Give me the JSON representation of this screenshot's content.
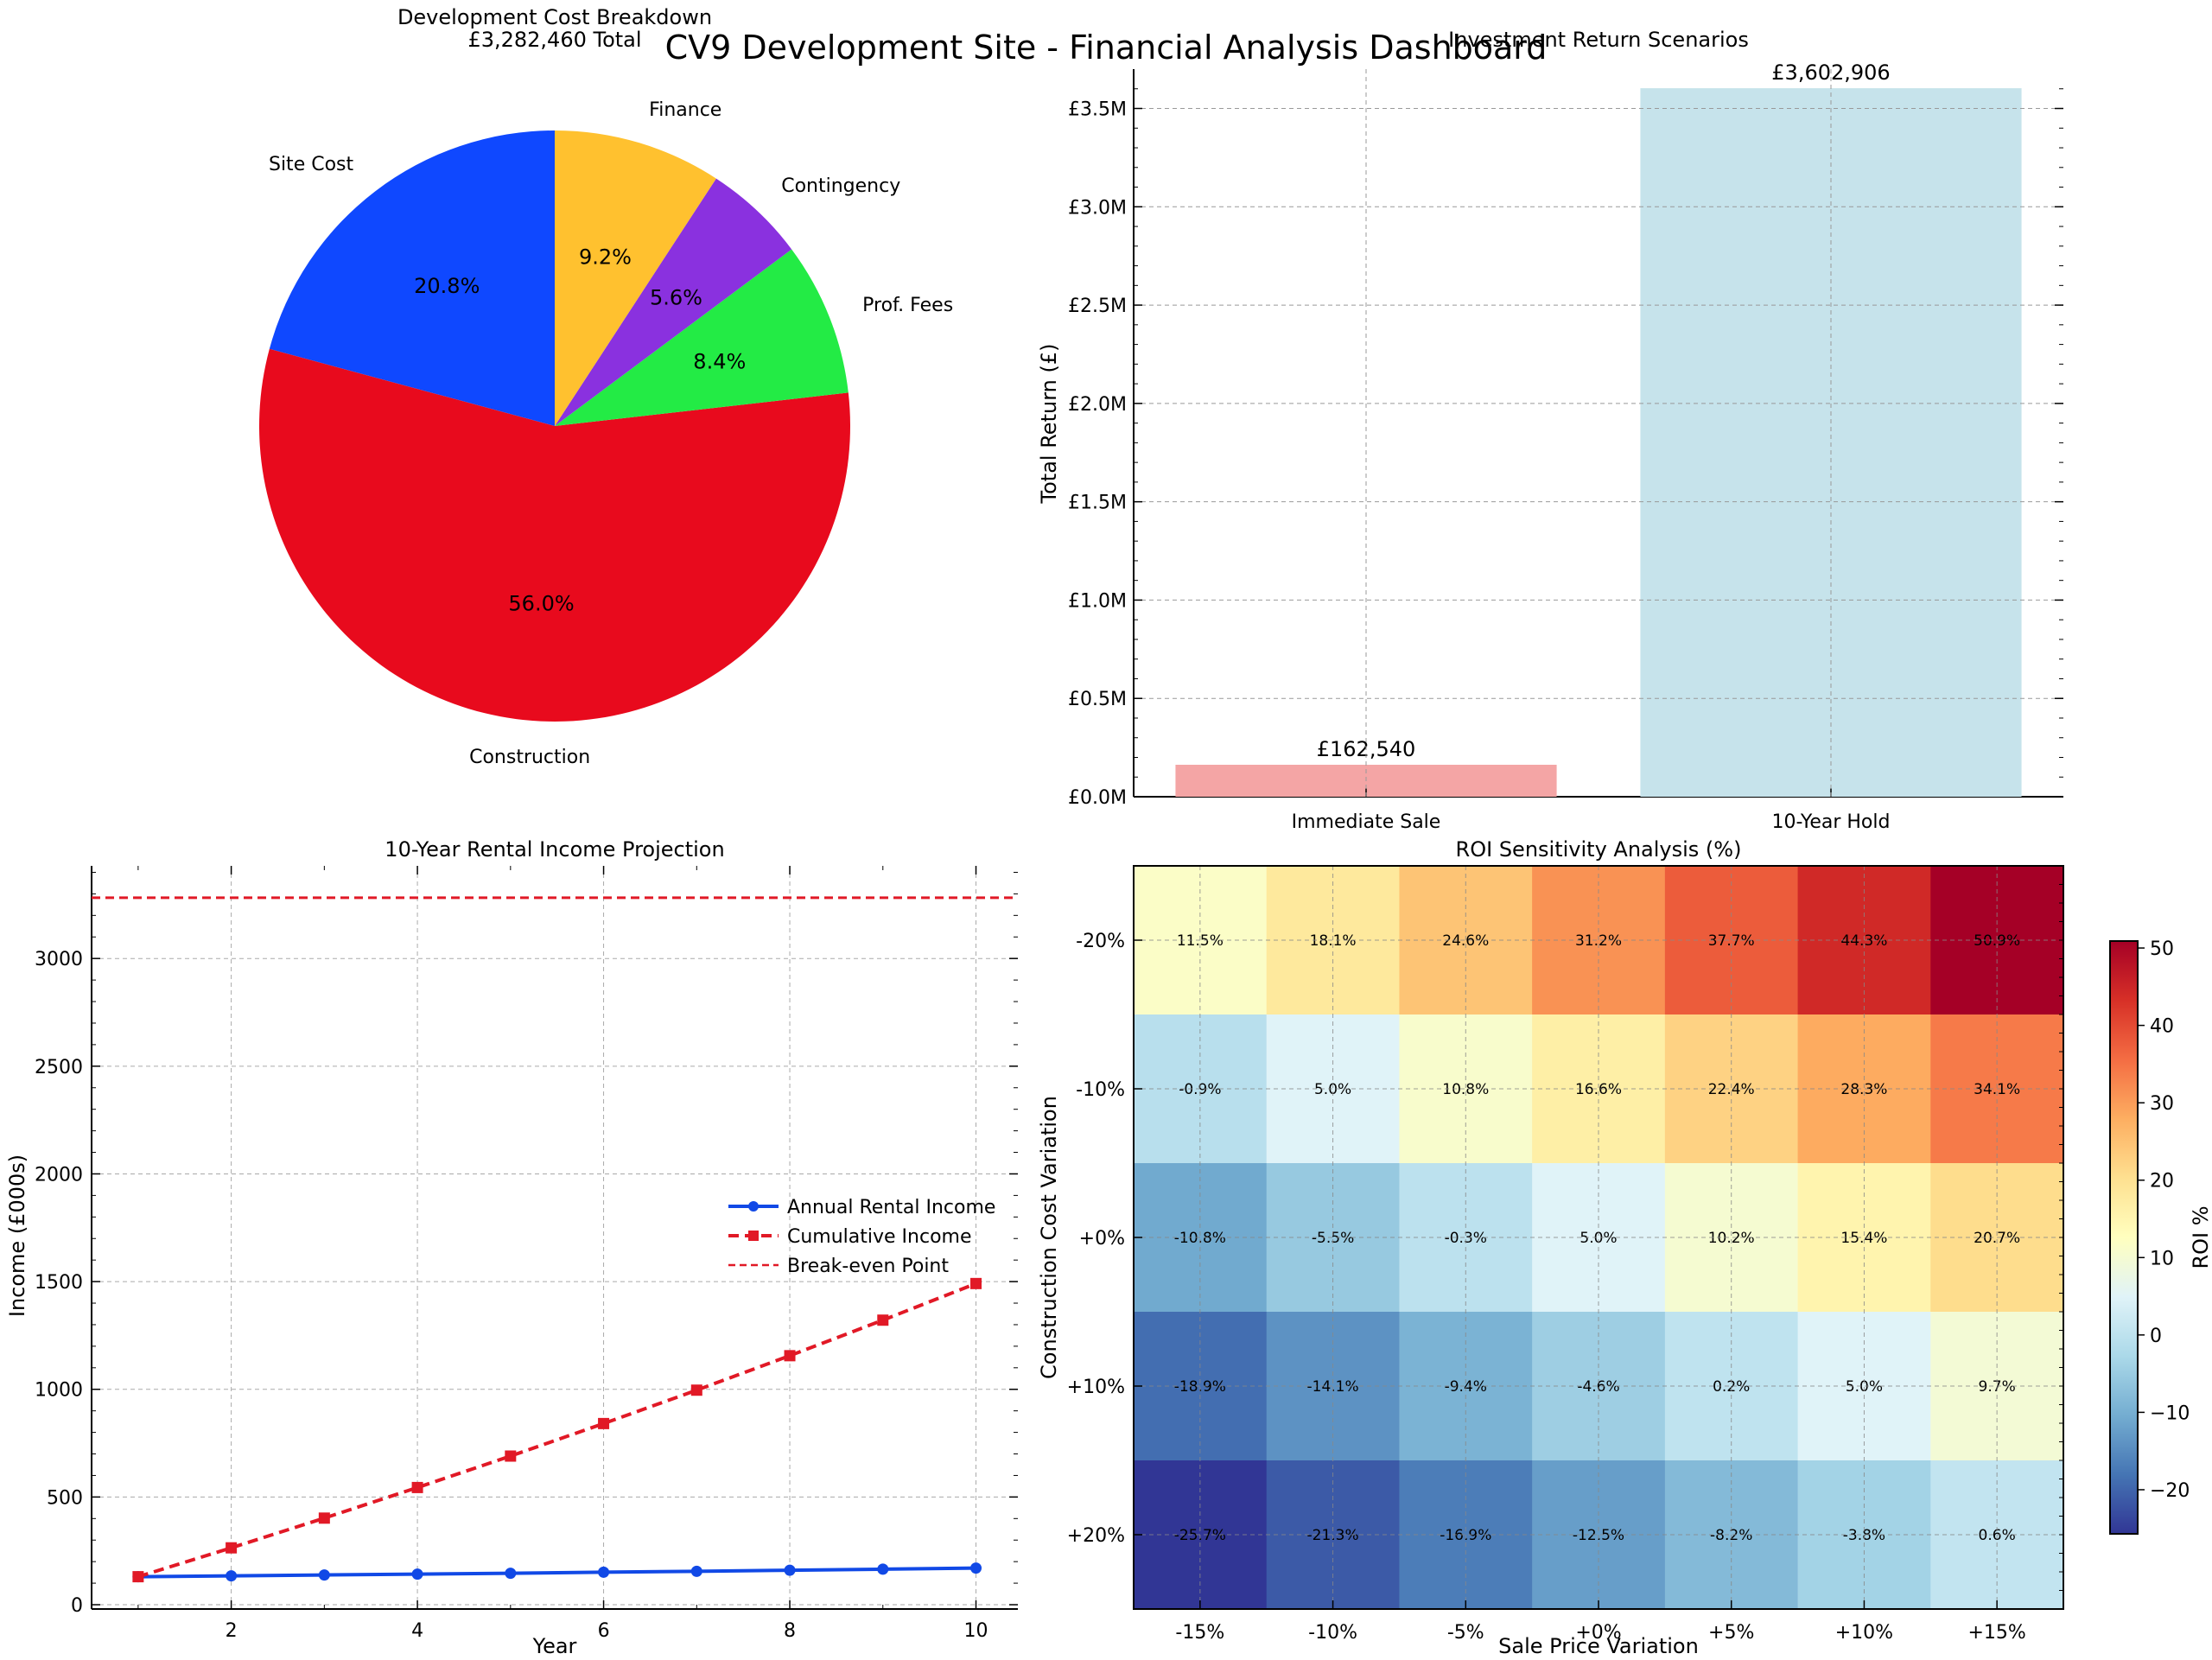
{
  "page_title": "CV9 Development Site - Financial Analysis Dashboard",
  "chart_data": [
    {
      "type": "pie",
      "title": "Development Cost Breakdown",
      "subtitle": "£3,282,460 Total",
      "slices": [
        {
          "label": "Site Cost",
          "pct": 20.8,
          "pct_label": "20.8%",
          "color": "#0f48ff"
        },
        {
          "label": "Construction",
          "pct": 56.0,
          "pct_label": "56.0%",
          "color": "#e80a1d"
        },
        {
          "label": "Prof. Fees",
          "pct": 8.4,
          "pct_label": "8.4%",
          "color": "#23eb45"
        },
        {
          "label": "Contingency",
          "pct": 5.6,
          "pct_label": "5.6%",
          "color": "#8a31df"
        },
        {
          "label": "Finance",
          "pct": 9.2,
          "pct_label": "9.2%",
          "color": "#ffc12f"
        }
      ]
    },
    {
      "type": "bar",
      "title": "Investment Return Scenarios",
      "ylabel": "Total Return (£)",
      "categories": [
        "Immediate Sale",
        "10-Year Hold"
      ],
      "values": [
        162540,
        3602906
      ],
      "value_labels": [
        "£162,540",
        "£3,602,906"
      ],
      "colors": [
        "#f4a5a5",
        "#c6e3eb"
      ],
      "ylim": [
        0,
        3700000
      ],
      "yticks": [
        0,
        500000,
        1000000,
        1500000,
        2000000,
        2500000,
        3000000,
        3500000
      ],
      "ytick_labels": [
        "£0.0M",
        "£0.5M",
        "£1.0M",
        "£1.5M",
        "£2.0M",
        "£2.5M",
        "£3.0M",
        "£3.5M"
      ],
      "grid": true
    },
    {
      "type": "line",
      "title": "10-Year Rental Income Projection",
      "xlabel": "Year",
      "ylabel": "Income (£000s)",
      "x": [
        1,
        2,
        3,
        4,
        5,
        6,
        7,
        8,
        9,
        10
      ],
      "xlim": [
        0.5,
        10.45
      ],
      "ylim": [
        -20,
        3430
      ],
      "xticks": [
        2,
        4,
        6,
        8,
        10
      ],
      "yticks": [
        0,
        500,
        1000,
        1500,
        2000,
        2500,
        3000
      ],
      "grid": true,
      "legend_position": "center-right",
      "series": [
        {
          "name": "Annual Rental Income",
          "color": "#1149e6",
          "style": "solid",
          "marker": "circle",
          "values": [
            130,
            134,
            138,
            142,
            146,
            151,
            155,
            160,
            165,
            170
          ]
        },
        {
          "name": "Cumulative Income",
          "color": "#e11926",
          "style": "dashed",
          "marker": "square",
          "values": [
            130,
            264,
            402,
            544,
            690,
            841,
            996,
            1156,
            1321,
            1491
          ]
        }
      ],
      "hline": {
        "name": "Break-even Point",
        "value": 3282,
        "color": "#e11926",
        "style": "dashed"
      }
    },
    {
      "type": "heatmap",
      "title": "ROI Sensitivity Analysis (%)",
      "xlabel": "Sale Price Variation",
      "ylabel": "Construction Cost Variation",
      "colorbar_label": "ROI %",
      "x_labels": [
        "-15%",
        "-10%",
        "-5%",
        "+0%",
        "+5%",
        "+10%",
        "+15%"
      ],
      "y_labels": [
        "-20%",
        "-10%",
        "+0%",
        "+10%",
        "+20%"
      ],
      "values": [
        [
          11.5,
          18.1,
          24.6,
          31.2,
          37.7,
          44.3,
          50.9
        ],
        [
          -0.9,
          5.0,
          10.8,
          16.6,
          22.4,
          28.3,
          34.1
        ],
        [
          -10.8,
          -5.5,
          -0.3,
          5.0,
          10.2,
          15.4,
          20.7
        ],
        [
          -18.9,
          -14.1,
          -9.4,
          -4.6,
          0.2,
          5.0,
          9.7
        ],
        [
          -25.7,
          -21.3,
          -16.9,
          -12.5,
          -8.2,
          -3.8,
          0.6
        ]
      ],
      "value_labels": [
        [
          "11.5%",
          "18.1%",
          "24.6%",
          "31.2%",
          "37.7%",
          "44.3%",
          "50.9%"
        ],
        [
          "-0.9%",
          "5.0%",
          "10.8%",
          "16.6%",
          "22.4%",
          "28.3%",
          "34.1%"
        ],
        [
          "-10.8%",
          "-5.5%",
          "-0.3%",
          "5.0%",
          "10.2%",
          "15.4%",
          "20.7%"
        ],
        [
          "-18.9%",
          "-14.1%",
          "-9.4%",
          "-4.6%",
          "0.2%",
          "5.0%",
          "9.7%"
        ],
        [
          "-25.7%",
          "-21.3%",
          "-16.9%",
          "-12.5%",
          "-8.2%",
          "-3.8%",
          "0.6%"
        ]
      ],
      "vmin": -25.7,
      "vmax": 50.9,
      "colorbar_ticks": [
        -20,
        -10,
        0,
        10,
        20,
        30,
        40,
        50
      ],
      "colorbar_tick_labels": [
        "−20",
        "−10",
        "0",
        "10",
        "20",
        "30",
        "40",
        "50"
      ]
    }
  ]
}
